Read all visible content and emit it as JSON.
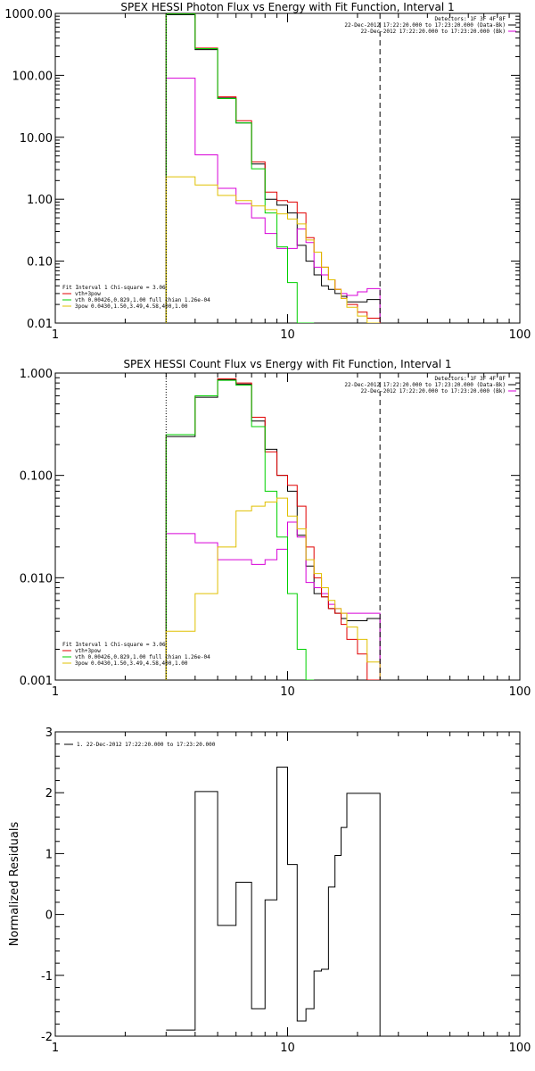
{
  "chart_data": [
    {
      "type": "line",
      "title": "SPEX HESSI Photon Flux vs Energy with Fit Function, Interval 1",
      "xlabel": "",
      "ylabel": "",
      "x_scale": "log",
      "y_scale": "log",
      "xlim": [
        1,
        100
      ],
      "ylim": [
        0.01,
        1000
      ],
      "x_ticks": [
        1,
        10,
        100
      ],
      "x_tick_labels": [
        "1",
        "10",
        "100"
      ],
      "y_ticks": [
        0.01,
        0.1,
        1,
        10,
        100,
        1000
      ],
      "y_tick_labels": [
        "0.01",
        "0.10",
        "1.00",
        "10.00",
        "100.00",
        "1000.00"
      ],
      "vlines": [
        {
          "x": 3.0,
          "style": "dotted",
          "color": "#000000"
        },
        {
          "x": 25.0,
          "style": "dashed",
          "color": "#000000"
        }
      ],
      "info_lines": [
        "Detectors: 1F 3F 4F 8F",
        "22-Dec-2012 17:22:20.000 to 17:23:20.000 (Data-Bk)",
        "22-Dec-2012 17:22:20.000 to 17:23:20.000 (Bk)"
      ],
      "legend": {
        "position": "bottom-left",
        "header": "Fit Interval 1    Chi-square = 3.06",
        "entries": [
          "vth+3pow",
          "vth 0.00426,0.829,1.00  full chian 1.26e-04",
          "3pow 0.0430,1.50,3.49,4.58,400,1.00"
        ]
      },
      "edges": [
        3,
        4,
        5,
        6,
        7,
        8,
        9,
        10,
        11,
        12,
        13,
        14,
        15,
        16,
        17,
        18,
        20,
        22,
        25
      ],
      "series": [
        {
          "name": "22-Dec-2012 17:22:20.000 to 17:23:20.000 (Data-Bk)",
          "color": "#000000",
          "values": [
            950,
            260,
            43,
            17,
            3.7,
            1.0,
            0.8,
            0.6,
            0.18,
            0.1,
            0.06,
            0.04,
            0.035,
            0.03,
            0.027,
            0.022,
            0.022,
            0.024
          ]
        },
        {
          "name": "22-Dec-2012 17:22:20.000 to 17:23:20.000 (Bk)",
          "color": "#d800d8",
          "values": [
            90,
            5.2,
            1.5,
            0.85,
            0.5,
            0.28,
            0.16,
            0.16,
            0.33,
            0.2,
            0.08,
            0.06,
            0.05,
            0.035,
            0.03,
            0.028,
            0.032,
            0.036
          ]
        },
        {
          "name": "vth+3pow",
          "color": "#e00000",
          "values": [
            990,
            275,
            45,
            18.5,
            4.0,
            1.3,
            0.95,
            0.9,
            0.6,
            0.24,
            0.14,
            0.08,
            0.05,
            0.035,
            0.025,
            0.02,
            0.015,
            0.012
          ]
        },
        {
          "name": "vth 0.00426,0.829,1.00  full chian 1.26e-04",
          "color": "#00d000",
          "values": [
            980,
            270,
            42,
            17,
            3.1,
            0.6,
            0.17,
            0.045,
            0.009,
            0.002
          ]
        },
        {
          "name": "3pow 0.0430,1.50,3.49,4.58,400,1.00",
          "color": "#e0c000",
          "values": [
            2.3,
            1.7,
            1.15,
            0.95,
            0.78,
            0.68,
            0.58,
            0.48,
            0.4,
            0.22,
            0.14,
            0.08,
            0.05,
            0.035,
            0.025,
            0.018,
            0.013,
            0.009
          ]
        }
      ]
    },
    {
      "type": "line",
      "title": "SPEX HESSI Count Flux vs Energy with Fit Function, Interval 1",
      "xlabel": "",
      "ylabel": "",
      "x_scale": "log",
      "y_scale": "log",
      "xlim": [
        1,
        100
      ],
      "ylim": [
        0.001,
        1
      ],
      "x_ticks": [
        1,
        10,
        100
      ],
      "x_tick_labels": [
        "1",
        "10",
        "100"
      ],
      "y_ticks": [
        0.001,
        0.01,
        0.1,
        1
      ],
      "y_tick_labels": [
        "0.001",
        "0.010",
        "0.100",
        "1.000"
      ],
      "vlines": [
        {
          "x": 3.0,
          "style": "dotted",
          "color": "#000000"
        },
        {
          "x": 25.0,
          "style": "dashed",
          "color": "#000000"
        }
      ],
      "info_lines": [
        "Detectors: 1F 3F 4F 8F",
        "22-Dec-2012 17:22:20.000 to 17:23:20.000 (Data-Bk)",
        "22-Dec-2012 17:22:20.000 to 17:23:20.000 (Bk)"
      ],
      "legend": {
        "position": "bottom-left",
        "header": "Fit Interval 1    Chi-square = 3.06",
        "entries": [
          "vth+3pow",
          "vth 0.00426,0.829,1.00  full chian 1.26e-04",
          "3pow 0.0430,1.50,3.49,4.58,400,1.00"
        ]
      },
      "edges": [
        3,
        4,
        5,
        6,
        7,
        8,
        9,
        10,
        11,
        12,
        13,
        14,
        15,
        16,
        17,
        18,
        20,
        22,
        25
      ],
      "series": [
        {
          "name": "22-Dec-2012 17:22:20.000 to 17:23:20.000 (Data-Bk)",
          "color": "#000000",
          "values": [
            0.24,
            0.58,
            0.86,
            0.78,
            0.34,
            0.18,
            0.1,
            0.07,
            0.026,
            0.013,
            0.007,
            0.0065,
            0.005,
            0.0045,
            0.004,
            0.0038,
            0.0038,
            0.004
          ]
        },
        {
          "name": "22-Dec-2012 17:22:20.000 to 17:23:20.000 (Bk)",
          "color": "#d800d8",
          "values": [
            0.027,
            0.022,
            0.015,
            0.015,
            0.0135,
            0.015,
            0.019,
            0.035,
            0.025,
            0.009,
            0.008,
            0.007,
            0.0055,
            0.005,
            0.0045,
            0.0045,
            0.0045,
            0.0045
          ]
        },
        {
          "name": "vth+3pow",
          "color": "#e00000",
          "values": [
            0.25,
            0.6,
            0.88,
            0.8,
            0.37,
            0.17,
            0.1,
            0.08,
            0.05,
            0.02,
            0.01,
            0.0065,
            0.005,
            0.0045,
            0.0035,
            0.0025,
            0.0018,
            0.001
          ]
        },
        {
          "name": "vth 0.00426,0.829,1.00  full chian 1.26e-04",
          "color": "#00d000",
          "values": [
            0.25,
            0.6,
            0.85,
            0.76,
            0.3,
            0.07,
            0.025,
            0.007,
            0.002,
            0.0006
          ]
        },
        {
          "name": "3pow 0.0430,1.50,3.49,4.58,400,1.00",
          "color": "#e0c000",
          "values": [
            0.003,
            0.007,
            0.02,
            0.045,
            0.05,
            0.055,
            0.06,
            0.04,
            0.03,
            0.015,
            0.011,
            0.008,
            0.006,
            0.005,
            0.0045,
            0.0033,
            0.0025,
            0.0015
          ]
        }
      ]
    },
    {
      "type": "line",
      "title": "",
      "xlabel": "",
      "ylabel": "Normalized Residuals",
      "x_scale": "log",
      "y_scale": "linear",
      "xlim": [
        1,
        100
      ],
      "ylim": [
        -2,
        3
      ],
      "x_ticks": [
        1,
        10,
        100
      ],
      "x_tick_labels": [
        "1",
        "10",
        "100"
      ],
      "y_ticks": [
        -2,
        -1,
        0,
        1,
        2,
        3
      ],
      "y_tick_labels": [
        "-2",
        "-1",
        "0",
        "1",
        "2",
        "3"
      ],
      "legend": {
        "position": "top-left",
        "entries": [
          "1. 22-Dec-2012 17:22:20.000 to 17:23:20.000"
        ]
      },
      "edges": [
        3,
        4,
        5,
        6,
        7,
        8,
        9,
        10,
        11,
        12,
        13,
        14,
        15,
        16,
        17,
        18,
        20,
        22,
        25
      ],
      "series": [
        {
          "name": "1. 22-Dec-2012 17:22:20.000 to 17:23:20.000",
          "color": "#000000",
          "values": [
            -1.9,
            2.02,
            -0.18,
            0.53,
            -1.55,
            0.24,
            2.42,
            0.82,
            -1.75,
            -1.55,
            -0.93,
            -0.9,
            0.45,
            0.97,
            1.43,
            1.99,
            1.99,
            1.99
          ]
        }
      ]
    }
  ]
}
